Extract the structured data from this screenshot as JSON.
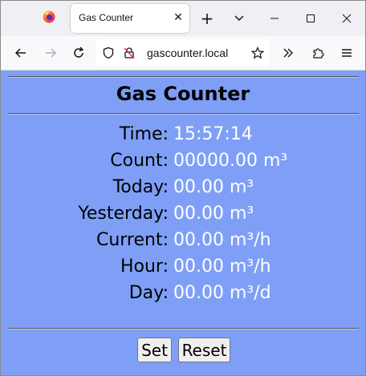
{
  "browser": {
    "tab_title": "Gas Counter",
    "url": "gascounter.local",
    "icons": {
      "pinned_tab": "firefox-icon",
      "close_tab": "close-icon",
      "new_tab": "plus-icon",
      "tab_list": "chevron-down-icon",
      "minimize": "minimize-icon",
      "maximize": "maximize-icon",
      "close_window": "close-icon",
      "back": "back-arrow-icon",
      "forward": "forward-arrow-icon",
      "reload": "reload-icon",
      "tracking_protection": "shield-icon",
      "permissions": "lock-slash-icon",
      "bookmark": "star-icon",
      "overflow": "double-chevron-icon",
      "extensions": "puzzle-icon",
      "menu": "hamburger-icon"
    }
  },
  "page": {
    "title": "Gas Counter",
    "background": "#7f9ff7",
    "value_color": "#ffffff",
    "rows": [
      {
        "label": "Time:",
        "value": "15:57:14"
      },
      {
        "label": "Count:",
        "value": "00000.00 m³"
      },
      {
        "label": "Today:",
        "value": "00.00 m³"
      },
      {
        "label": "Yesterday:",
        "value": "00.00 m³"
      },
      {
        "label": "Current:",
        "value": "00.00 m³/h"
      },
      {
        "label": "Hour:",
        "value": "00.00 m³/h"
      },
      {
        "label": "Day:",
        "value": "00.00 m³/d"
      }
    ],
    "buttons": {
      "set": "Set",
      "reset": "Reset"
    }
  }
}
